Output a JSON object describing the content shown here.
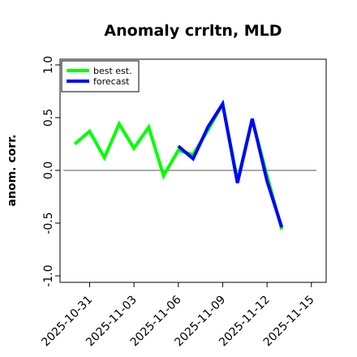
{
  "chart_data": {
    "type": "line",
    "title": "Anomaly crrltn, MLD",
    "xlabel": "",
    "ylabel": "anom. corr.",
    "ylim": [
      -1.0,
      1.0
    ],
    "y_ticks": [
      "-1.0",
      "-0.5",
      "0.0",
      "0.5",
      "1.0"
    ],
    "x_tick_labels": [
      "2025-10-31",
      "2025-11-03",
      "2025-11-06",
      "2025-11-09",
      "2025-11-12",
      "2025-11-15"
    ],
    "x_tick_colors": [
      "#000000",
      "#000000",
      "#228b22",
      "#000000",
      "#000000",
      "#000000"
    ],
    "xlim": [
      "2025-10-29",
      "2025-11-16"
    ],
    "reference_line": {
      "y": 0.0,
      "color": "#555555"
    },
    "legend": {
      "position": "top-left"
    },
    "series": [
      {
        "name": "best est.",
        "color": "#00ff00",
        "x": [
          "2025-10-30",
          "2025-10-31",
          "2025-11-01",
          "2025-11-02",
          "2025-11-03",
          "2025-11-04",
          "2025-11-05",
          "2025-11-06",
          "2025-11-07",
          "2025-11-08",
          "2025-11-09",
          "2025-11-10",
          "2025-11-11",
          "2025-11-12",
          "2025-11-13"
        ],
        "y": [
          0.25,
          0.37,
          0.12,
          0.44,
          0.21,
          0.41,
          -0.05,
          0.19,
          0.15,
          0.38,
          0.63,
          -0.1,
          0.48,
          -0.05,
          -0.56
        ]
      },
      {
        "name": "forecast",
        "color": "#0000ff",
        "x": [
          "2025-11-06",
          "2025-11-07",
          "2025-11-08",
          "2025-11-09",
          "2025-11-10",
          "2025-11-11",
          "2025-11-12",
          "2025-11-13"
        ],
        "y": [
          0.23,
          0.11,
          0.41,
          0.63,
          -0.12,
          0.49,
          -0.1,
          -0.54
        ]
      }
    ]
  }
}
